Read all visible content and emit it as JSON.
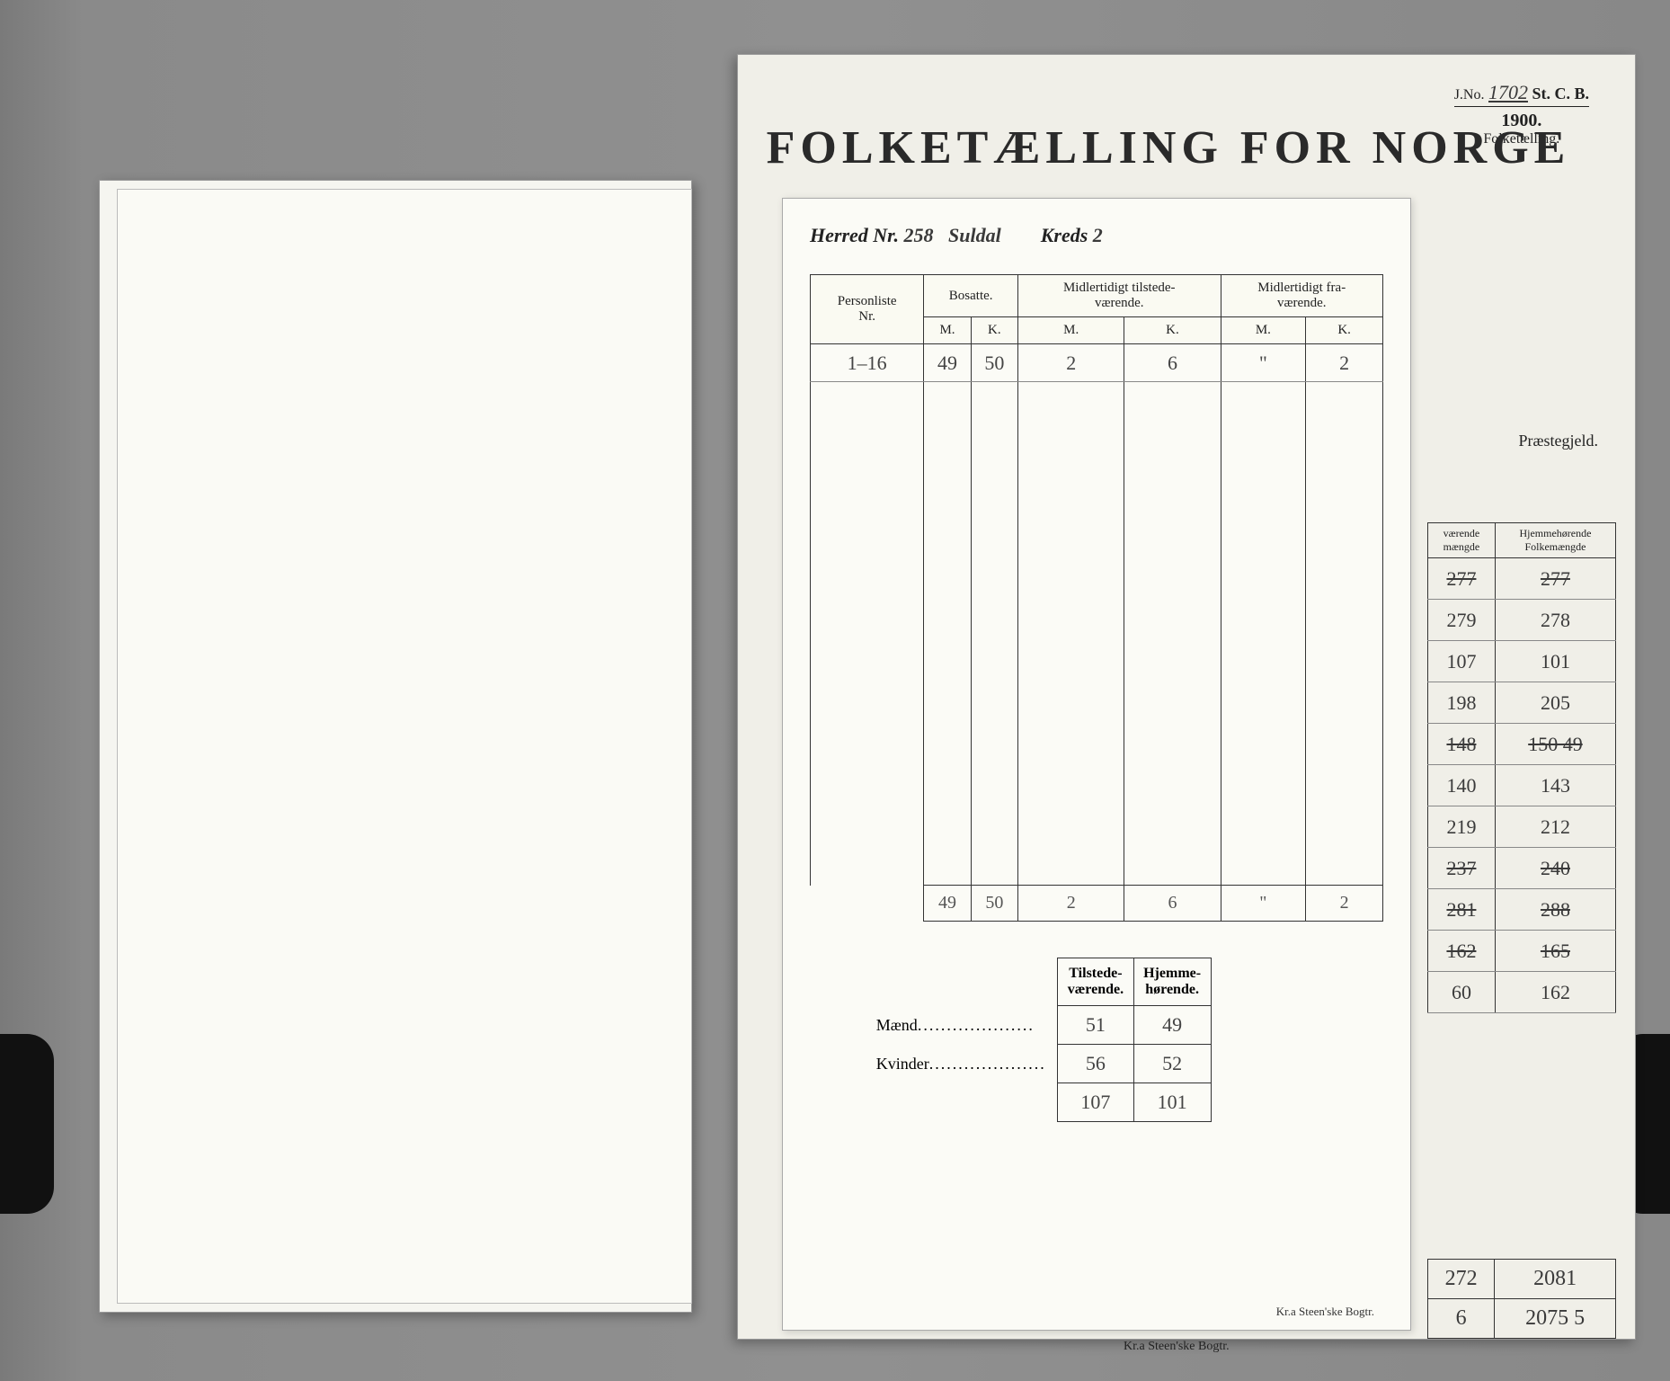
{
  "banner": "FOLKETÆLLING FOR NORGE",
  "corner": {
    "jno_label": "J.No.",
    "jno_value": "1702",
    "scb": "St. C. B.",
    "year": "1900.",
    "sub": "Folketælling."
  },
  "herred": {
    "label": "Herred Nr.",
    "nr": "258",
    "name": "Suldal",
    "kreds_label": "Kreds",
    "kreds": "2"
  },
  "main_headers": {
    "personliste": "Personliste",
    "nr": "Nr.",
    "bosatte": "Bosatte.",
    "mid_til": "Midlertidigt tilstede-\nværende.",
    "mid_fra": "Midlertidigt fra-\nværende.",
    "m": "M.",
    "k": "K."
  },
  "main_row": {
    "nr": "1–16",
    "bm": "49",
    "bk": "50",
    "tm": "2",
    "tk": "6",
    "fm": "\"",
    "fk": "2"
  },
  "main_total": {
    "bm": "49",
    "bk": "50",
    "tm": "2",
    "tk": "6",
    "fm": "\"",
    "fk": "2"
  },
  "summary": {
    "h_til": "Tilstede-\nværende.",
    "h_hj": "Hjemme-\nhørende.",
    "maend_label": "Mænd",
    "kvinder_label": "Kvinder",
    "maend_t": "51",
    "maend_h": "49",
    "kv_t": "56",
    "kv_h": "52",
    "tot_t": "107",
    "tot_h": "101"
  },
  "printer": "Kr.a   Steen'ske Bogtr.",
  "side": {
    "prae": "Præstegjeld.",
    "h1": "værende\nmængde",
    "h2": "Hjemmehørende\nFolkemængde",
    "rows": [
      {
        "a": "277",
        "b": "277"
      },
      {
        "a": "279",
        "b": "278"
      },
      {
        "a": "107",
        "b": "101"
      },
      {
        "a": "198",
        "b": "205"
      },
      {
        "a": "148",
        "b": "150 49"
      },
      {
        "a": "140",
        "b": "143"
      },
      {
        "a": "219",
        "b": "212"
      },
      {
        "a": "237",
        "b": "240"
      },
      {
        "a": "281",
        "b": "288"
      },
      {
        "a": "162",
        "b": "165"
      },
      {
        "a": "60",
        "b": "162"
      }
    ],
    "total": {
      "a": "272",
      "b": "2081"
    },
    "total2": {
      "a": "6",
      "b": "2075 5"
    }
  }
}
